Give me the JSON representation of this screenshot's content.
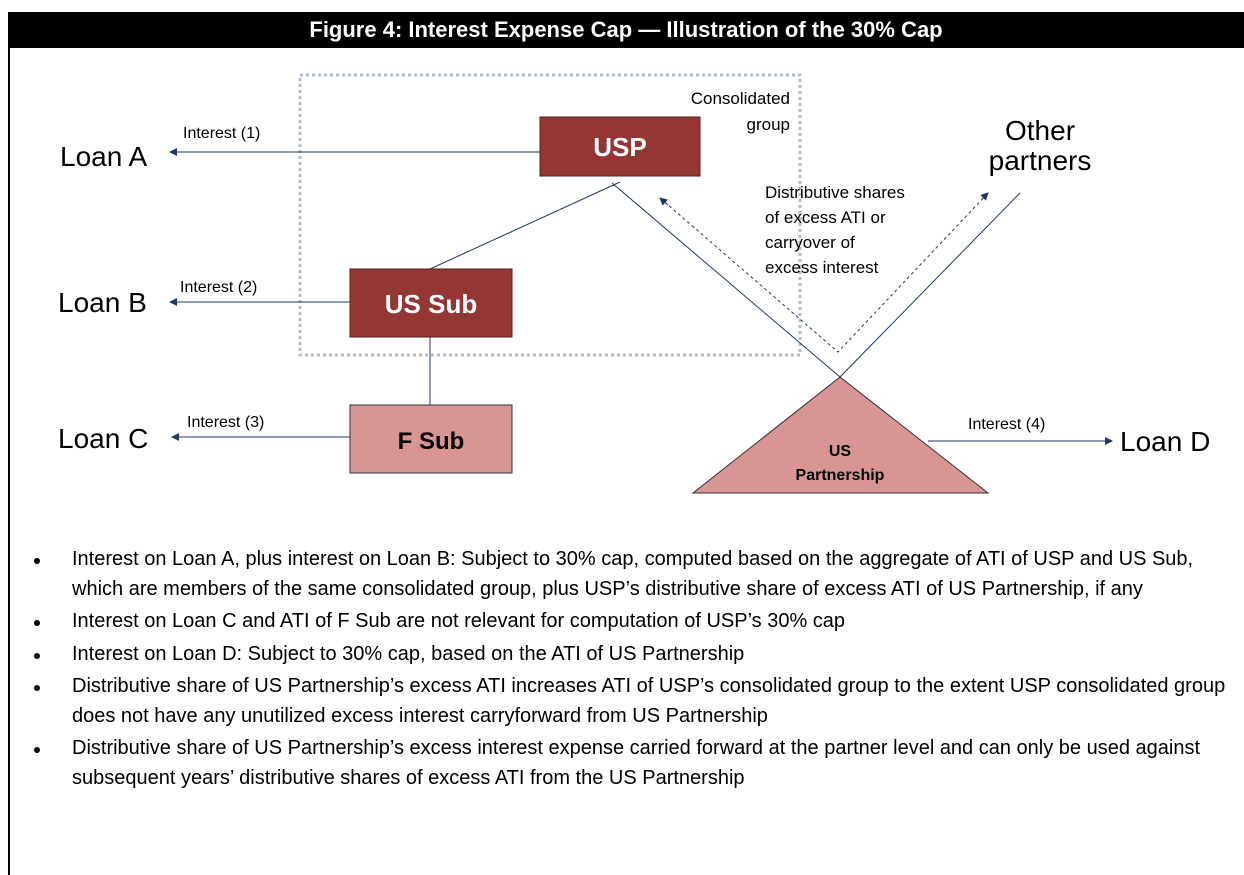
{
  "header": {
    "title": "Figure 4: Interest Expense Cap — Illustration of the 30% Cap"
  },
  "nodes": [
    {
      "label": "USP"
    },
    {
      "label": "US Sub"
    },
    {
      "label": "F Sub"
    },
    {
      "label": [
        "US",
        "Partnership"
      ]
    }
  ],
  "loans": [
    {
      "label": "Loan A",
      "edge": "Interest (1)"
    },
    {
      "label": "Loan B",
      "edge": "Interest (2)"
    },
    {
      "label": "Loan C",
      "edge": "Interest (3)"
    },
    {
      "label": "Loan D",
      "edge": "Interest (4)"
    }
  ],
  "group_label": [
    "Consolidated",
    "group"
  ],
  "other_partners": [
    "Other",
    "partners"
  ],
  "flow_label": [
    "Distributive shares",
    "of excess ATI or",
    "carryover of",
    "excess interest"
  ],
  "bullets": [
    "Interest on Loan A, plus interest on Loan B: Subject to 30% cap, computed based on the aggregate of ATI of USP and US Sub, which are members of the same consolidated group, plus USP’s distributive share of excess ATI of US Partnership, if any",
    "Interest on Loan C and ATI of F Sub are not relevant for computation of USP’s 30% cap",
    "Interest on Loan D: Subject to 30% cap, based on the ATI of US Partnership",
    "Distributive share of US Partnership’s excess ATI increases ATI of USP’s consolidated group to the extent USP consolidated group does not have any unutilized excess interest carryforward from US Partnership",
    "Distributive share of US Partnership’s excess interest expense carried forward at the partner level and can only be used against subsequent years’ distributive shares of excess ATI from the US Partnership"
  ]
}
